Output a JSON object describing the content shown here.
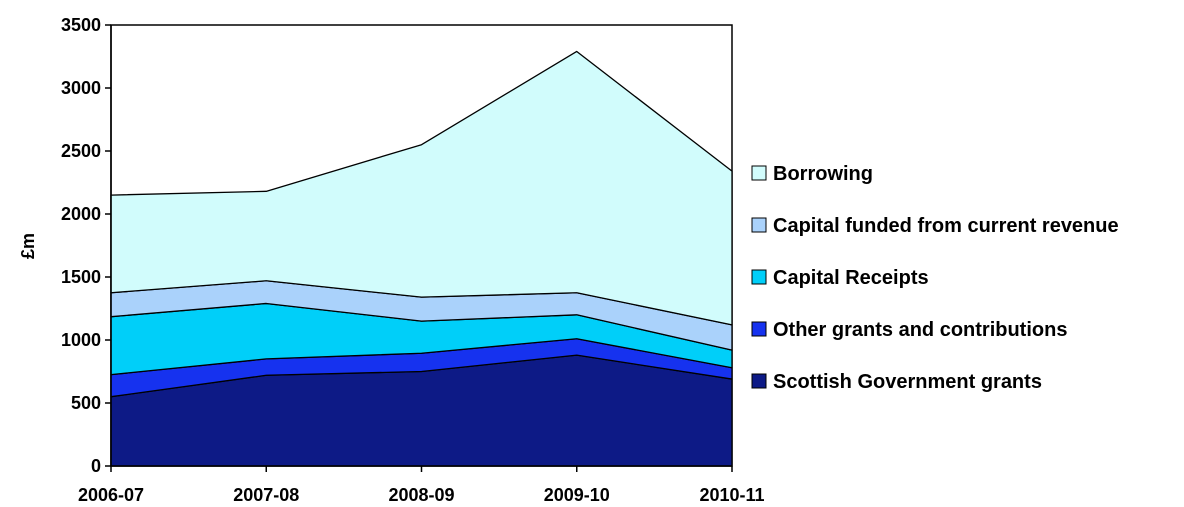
{
  "chart_data": {
    "type": "area",
    "stacked": true,
    "ylabel": "£m",
    "xlabel": "",
    "ylim": [
      0,
      3500
    ],
    "yticks": [
      0,
      500,
      1000,
      1500,
      2000,
      2500,
      3000,
      3500
    ],
    "categories": [
      "2006-07",
      "2007-08",
      "2008-09",
      "2009-10",
      "2010-11"
    ],
    "legend_position": "right",
    "grid": false,
    "series": [
      {
        "name": "Scottish Government grants",
        "color": "#0d1a86",
        "values": [
          550,
          720,
          750,
          880,
          690
        ]
      },
      {
        "name": "Other grants and contributions",
        "color": "#1632ef",
        "values": [
          175,
          130,
          145,
          130,
          90
        ]
      },
      {
        "name": "Capital Receipts",
        "color": "#00cff9",
        "values": [
          460,
          440,
          255,
          190,
          140
        ]
      },
      {
        "name": "Capital funded from current revenue",
        "color": "#aad2fb",
        "values": [
          190,
          180,
          190,
          175,
          200
        ]
      },
      {
        "name": "Borrowing",
        "color": "#d1fcfc",
        "values": [
          775,
          710,
          1210,
          1915,
          1220
        ]
      }
    ]
  }
}
